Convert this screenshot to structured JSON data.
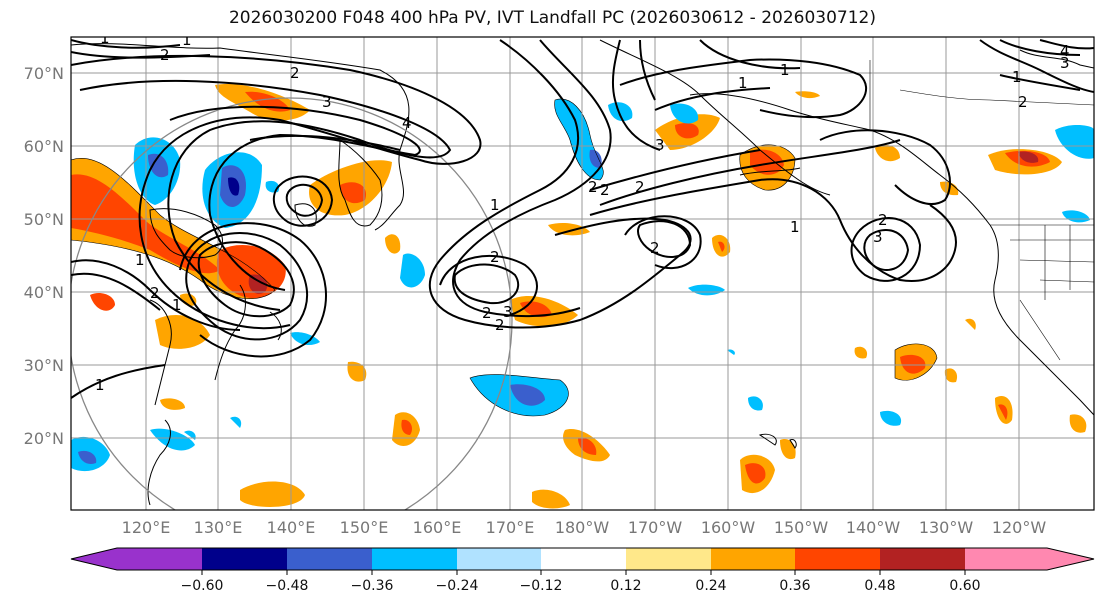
{
  "title": "2026030200 F048 400 hPa PV, IVT Landfall PC (2026030612 - 2026030712)",
  "lat_labels": [
    "70°N",
    "60°N",
    "50°N",
    "40°N",
    "30°N",
    "20°N"
  ],
  "lon_labels": [
    "120°E",
    "130°E",
    "140°E",
    "150°E",
    "160°E",
    "170°E",
    "180°W",
    "170°W",
    "160°W",
    "150°W",
    "140°W",
    "130°W",
    "120°W"
  ],
  "colorbar": {
    "ticks": [
      "−0.60",
      "−0.48",
      "−0.36",
      "−0.24",
      "−0.12",
      "0.12",
      "0.24",
      "0.36",
      "0.48",
      "0.60"
    ],
    "colors": [
      "#9932cc",
      "#00008b",
      "#3a5fcd",
      "#00bfff",
      "#b0e2ff",
      "#ffffff",
      "#ffe88a",
      "#ffa500",
      "#ff4500",
      "#b22222",
      "#ff88b0"
    ]
  },
  "contour_labels": [
    "1",
    "2",
    "1",
    "2",
    "3",
    "4",
    "1",
    "1",
    "2",
    "3",
    "2",
    "2",
    "1",
    "2",
    "3",
    "2",
    "3",
    "2",
    "2",
    "2",
    "1",
    "1",
    "1",
    "1",
    "2",
    "1",
    "3",
    "4",
    "2"
  ]
}
